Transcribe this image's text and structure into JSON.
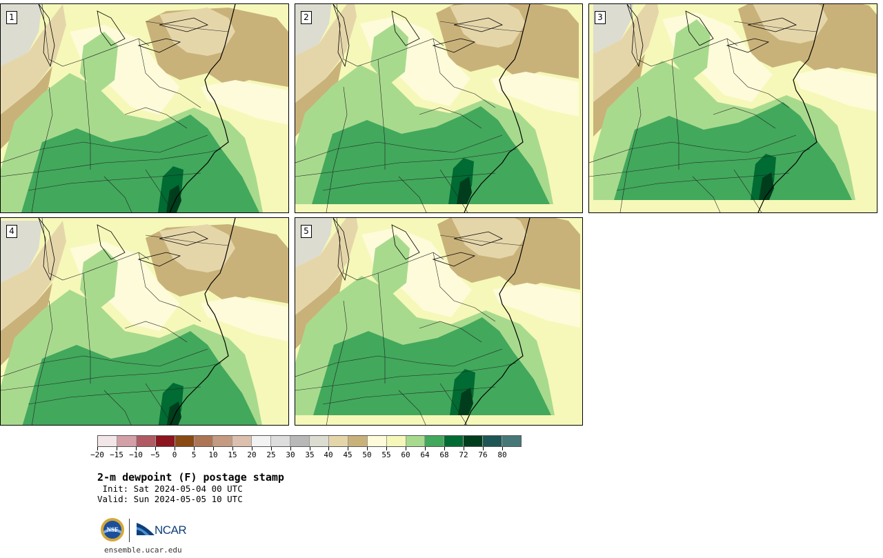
{
  "panels": [
    {
      "label": "1"
    },
    {
      "label": "2"
    },
    {
      "label": "3"
    },
    {
      "label": "4"
    },
    {
      "label": "5"
    }
  ],
  "colorbar": {
    "colors": [
      "#f2e6e8",
      "#d4a0a8",
      "#b05a64",
      "#8c1520",
      "#8a4a14",
      "#ad7554",
      "#c49b80",
      "#dcc0ad",
      "#f2f2f2",
      "#dddddd",
      "#b8b8b8",
      "#dcdcd0",
      "#e5d6aa",
      "#c9b27a",
      "#fdfbd9",
      "#f5f8b8",
      "#a8da8e",
      "#42a85c",
      "#006b32",
      "#003d1c",
      "#1e5555",
      "#477878"
    ],
    "tick_labels": [
      "−20",
      "−15",
      "−10",
      "−5",
      "0",
      "5",
      "10",
      "15",
      "20",
      "25",
      "30",
      "35",
      "40",
      "45",
      "50",
      "55",
      "60",
      "64",
      "68",
      "72",
      "76",
      "80"
    ]
  },
  "title": "2-m dewpoint (F) postage stamp",
  "init": " Init: Sat 2024-05-04 00 UTC",
  "valid": "Valid: Sun 2024-05-05 10 UTC",
  "ncar_label": "NCAR",
  "nsf_label": "NSF",
  "site": "ensemble.ucar.edu"
}
